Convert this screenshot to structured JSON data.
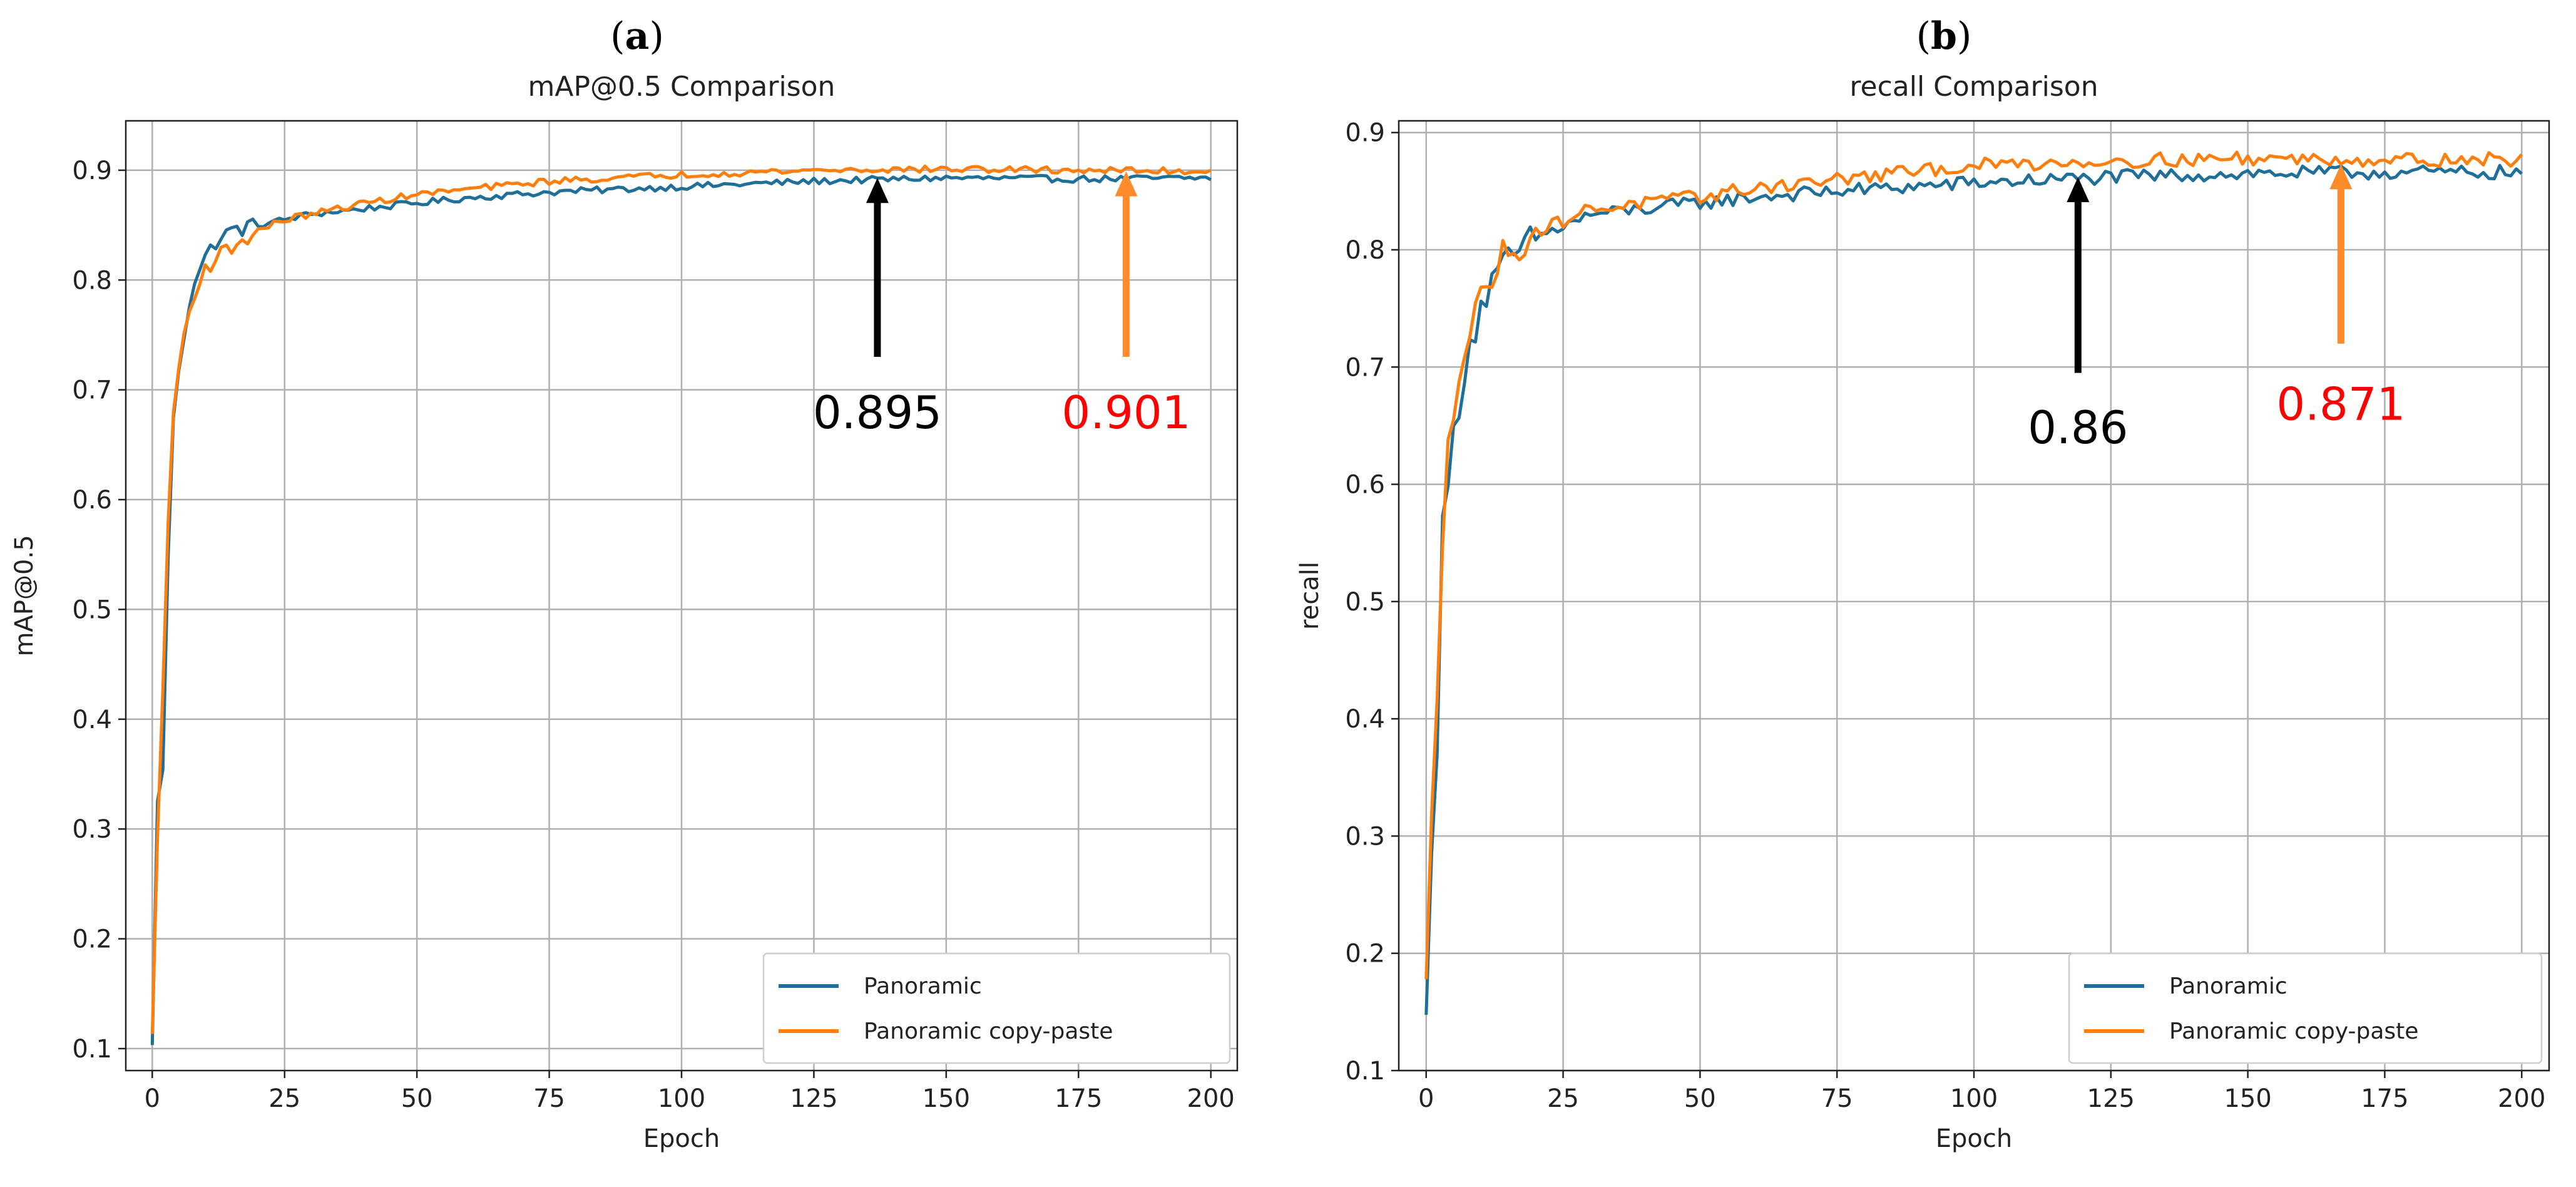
{
  "colors": {
    "panoramic": "#1f6f99",
    "copy_paste": "#ff7f0e",
    "arrow_black": "#000000",
    "arrow_orange": "#ff8c2a",
    "red_label": "#ff0000"
  },
  "panel_labels": [
    {
      "open": "(",
      "letter": "a",
      "close": ")"
    },
    {
      "open": "(",
      "letter": "b",
      "close": ")"
    }
  ],
  "chart_data": [
    {
      "type": "line",
      "title": "mAP@0.5 Comparison",
      "xlabel": "Epoch",
      "ylabel": "mAP@0.5",
      "xlim": [
        -5,
        205
      ],
      "ylim": [
        0.08,
        0.945
      ],
      "xticks": [
        0,
        25,
        50,
        75,
        100,
        125,
        150,
        175,
        200
      ],
      "xtick_labels": [
        "0",
        "25",
        "50",
        "75",
        "100",
        "125",
        "150",
        "175",
        "200"
      ],
      "yticks": [
        0.1,
        0.2,
        0.3,
        0.4,
        0.5,
        0.6,
        0.7,
        0.8,
        0.9
      ],
      "ytick_labels": [
        "0.1",
        "0.2",
        "0.3",
        "0.4",
        "0.5",
        "0.6",
        "0.7",
        "0.8",
        "0.9"
      ],
      "grid": true,
      "legend_position": "lower-right",
      "series": [
        {
          "name": "Panoramic",
          "color_key": "panoramic",
          "x": [
            0,
            1,
            2,
            3,
            4,
            5,
            6,
            7,
            8,
            10,
            12,
            15,
            20,
            25,
            30,
            40,
            50,
            60,
            75,
            100,
            125,
            150,
            175,
            200
          ],
          "values": [
            0.1,
            0.33,
            0.35,
            0.55,
            0.67,
            0.72,
            0.75,
            0.78,
            0.8,
            0.82,
            0.835,
            0.845,
            0.85,
            0.855,
            0.86,
            0.865,
            0.87,
            0.875,
            0.88,
            0.885,
            0.89,
            0.893,
            0.892,
            0.893
          ],
          "noise": 0.003
        },
        {
          "name": "Panoramic copy-paste",
          "color_key": "copy_paste",
          "x": [
            0,
            1,
            2,
            3,
            4,
            5,
            6,
            7,
            8,
            10,
            12,
            15,
            20,
            25,
            30,
            40,
            50,
            60,
            75,
            100,
            125,
            150,
            175,
            200
          ],
          "values": [
            0.11,
            0.3,
            0.42,
            0.58,
            0.68,
            0.72,
            0.75,
            0.77,
            0.79,
            0.81,
            0.82,
            0.83,
            0.845,
            0.855,
            0.86,
            0.87,
            0.878,
            0.883,
            0.89,
            0.896,
            0.9,
            0.901,
            0.9,
            0.899
          ],
          "noise": 0.003
        }
      ],
      "annotations": [
        {
          "text": "0.895",
          "color_key": "arrow_black",
          "text_color_key": "arrow_black",
          "epoch": 137,
          "arrow_tip": 0.893,
          "arrow_tail": 0.73,
          "label_y": 0.665
        },
        {
          "text": "0.901",
          "color_key": "arrow_orange",
          "text_color_key": "red_label",
          "epoch": 184,
          "arrow_tip": 0.899,
          "arrow_tail": 0.73,
          "label_y": 0.665
        }
      ]
    },
    {
      "type": "line",
      "title": "recall Comparison",
      "xlabel": "Epoch",
      "ylabel": "recall",
      "xlim": [
        -5,
        205
      ],
      "ylim": [
        0.1,
        0.91
      ],
      "xticks": [
        0,
        25,
        50,
        75,
        100,
        125,
        150,
        175,
        200
      ],
      "xtick_labels": [
        "0",
        "25",
        "50",
        "75",
        "100",
        "125",
        "150",
        "175",
        "200"
      ],
      "yticks": [
        0.1,
        0.2,
        0.3,
        0.4,
        0.5,
        0.6,
        0.7,
        0.8,
        0.9
      ],
      "ytick_labels": [
        "0.1",
        "0.2",
        "0.3",
        "0.4",
        "0.5",
        "0.6",
        "0.7",
        "0.8",
        "0.9"
      ],
      "grid": true,
      "legend_position": "lower-right",
      "series": [
        {
          "name": "Panoramic",
          "color_key": "panoramic",
          "x": [
            0,
            1,
            2,
            3,
            4,
            5,
            6,
            7,
            8,
            10,
            12,
            15,
            20,
            25,
            30,
            40,
            50,
            60,
            75,
            100,
            125,
            150,
            175,
            200
          ],
          "values": [
            0.14,
            0.3,
            0.38,
            0.56,
            0.6,
            0.64,
            0.67,
            0.7,
            0.72,
            0.75,
            0.77,
            0.79,
            0.81,
            0.82,
            0.83,
            0.835,
            0.84,
            0.845,
            0.85,
            0.857,
            0.862,
            0.865,
            0.866,
            0.866
          ],
          "noise": 0.006
        },
        {
          "name": "Panoramic copy-paste",
          "color_key": "copy_paste",
          "x": [
            0,
            1,
            2,
            3,
            4,
            5,
            6,
            7,
            8,
            10,
            12,
            15,
            20,
            25,
            30,
            40,
            50,
            60,
            75,
            100,
            125,
            150,
            175,
            200
          ],
          "values": [
            0.17,
            0.31,
            0.42,
            0.56,
            0.65,
            0.67,
            0.69,
            0.71,
            0.73,
            0.76,
            0.78,
            0.8,
            0.815,
            0.825,
            0.835,
            0.84,
            0.845,
            0.853,
            0.86,
            0.872,
            0.876,
            0.878,
            0.877,
            0.877
          ],
          "noise": 0.006
        }
      ],
      "annotations": [
        {
          "text": "0.86",
          "color_key": "arrow_black",
          "text_color_key": "arrow_black",
          "epoch": 119,
          "arrow_tip": 0.862,
          "arrow_tail": 0.695,
          "label_y": 0.635
        },
        {
          "text": "0.871",
          "color_key": "arrow_orange",
          "text_color_key": "red_label",
          "epoch": 167,
          "arrow_tip": 0.873,
          "arrow_tail": 0.72,
          "label_y": 0.655
        }
      ]
    }
  ]
}
